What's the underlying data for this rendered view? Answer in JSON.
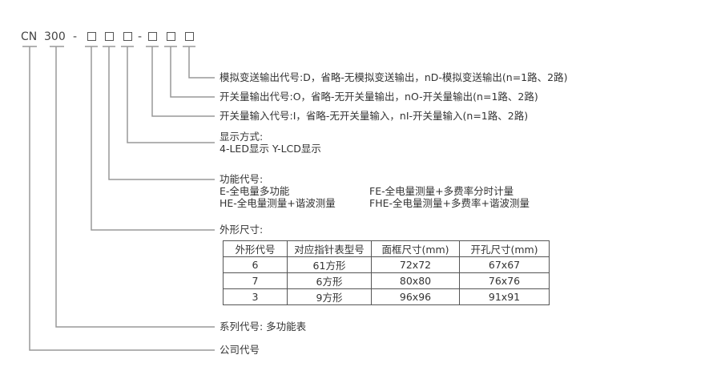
{
  "code": {
    "prefix": "CN",
    "series": "300",
    "dash1": "-",
    "dash2": "-"
  },
  "labels": {
    "analog": "模拟变送输出代号:D，省略-无模拟变送输出，nD-模拟变送输出(n=1路、2路)",
    "switch_out": "开关量输出代号:O，省略-无开关量输出，nO-开关量输出(n=1路、2路)",
    "switch_in": "开关量输入代号:I，省略-无开关量输入，nI-开关量输入(n=1路、2路)",
    "display_title": "显示方式:",
    "display_desc": "4-LED显示  Y-LCD显示",
    "function_title": "功能代号:",
    "function_items": [
      "E-全电量多功能",
      "FE-全电量测量+多费率分时计量",
      "HE-全电量测量+谐波测量",
      "FHE-全电量测量+多费率+谐波测量"
    ],
    "size_title": "外形尺寸:",
    "series": "系列代号: 多功能表",
    "company": "公司代号"
  },
  "table": {
    "headers": [
      "外形代号",
      "对应指针表型号",
      "面框尺寸(mm)",
      "开孔尺寸(mm)"
    ],
    "rows": [
      [
        "6",
        "61方形",
        "72x72",
        "67x67"
      ],
      [
        "7",
        "6方形",
        "80x80",
        "76x76"
      ],
      [
        "3",
        "9方形",
        "96x96",
        "91x91"
      ]
    ]
  }
}
